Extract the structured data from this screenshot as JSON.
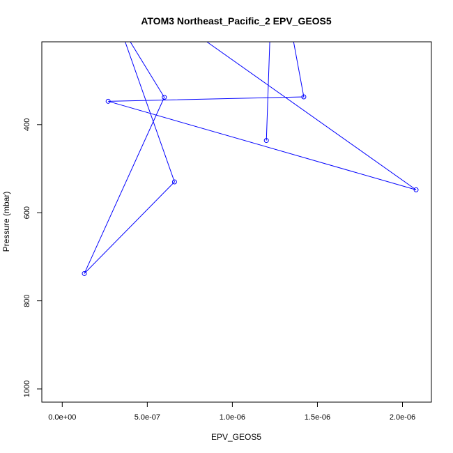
{
  "chart_data": {
    "type": "line",
    "title": "ATOM3 Northeast_Pacific_2 EPV_GEOS5",
    "xlabel": "EPV_GEOS5",
    "ylabel": "Pressure (mbar)",
    "xlim": [
      -1.2e-07,
      2.17e-06
    ],
    "ylim": [
      1030,
      212
    ],
    "y_reversed": true,
    "xticks": [
      0,
      5e-07,
      1e-06,
      1.5e-06,
      2e-06
    ],
    "xtick_labels": [
      "0.0e+00",
      "5.0e-07",
      "1.0e-06",
      "1.5e-06",
      "2.0e-06"
    ],
    "yticks": [
      400,
      600,
      800,
      1000
    ],
    "ytick_labels": [
      "400",
      "600",
      "800",
      "1000"
    ],
    "series_color": "#0000ff",
    "series": [
      {
        "x": [
          3.7e-07,
          6.6e-07,
          1.3e-07,
          6e-07,
          4e-07,
          8.5e-07,
          2.08e-06,
          2.7e-07,
          1.42e-06,
          1.36e-06,
          1.22e-06,
          1.2e-06
        ],
        "y": [
          212,
          530,
          738,
          338,
          212,
          212,
          548,
          347,
          337,
          212,
          212,
          436
        ]
      }
    ]
  }
}
